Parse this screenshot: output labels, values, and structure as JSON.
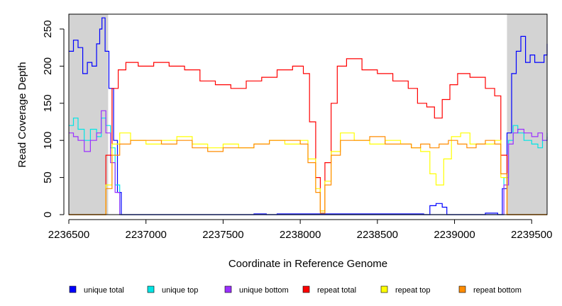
{
  "chart_data": {
    "type": "line",
    "title": "",
    "xlabel": "Coordinate in Reference Genome",
    "ylabel": "Read Coverage Depth",
    "xlim": [
      2236500,
      2239600
    ],
    "ylim": [
      0,
      270
    ],
    "x_ticks": [
      2236500,
      2237000,
      2237500,
      2238000,
      2238500,
      2239000,
      2239500
    ],
    "x_tick_labels": [
      "2236500",
      "2237000",
      "2237500",
      "2238000",
      "2238500",
      "2239000",
      "2239500"
    ],
    "y_ticks": [
      0,
      50,
      100,
      150,
      200,
      250
    ],
    "y_tick_labels": [
      "0",
      "50",
      "100",
      "150",
      "200",
      "250"
    ],
    "grid": false,
    "legend_position": "bottom",
    "shaded_regions": [
      {
        "x0": 2236500,
        "x1": 2236755,
        "color": "#d3d3d3"
      },
      {
        "x0": 2239340,
        "x1": 2239600,
        "color": "#d3d3d3"
      }
    ],
    "series": [
      {
        "name": "unique total",
        "color": "#0000ff",
        "x": [
          2236500,
          2236530,
          2236560,
          2236590,
          2236620,
          2236650,
          2236680,
          2236700,
          2236715,
          2236735,
          2236760,
          2236790,
          2236815,
          2236840,
          2237600,
          2237700,
          2237780,
          2237850,
          2238800,
          2238840,
          2238880,
          2238920,
          2238950,
          2239150,
          2239200,
          2239280,
          2239310,
          2239340,
          2239370,
          2239400,
          2239430,
          2239460,
          2239490,
          2239520,
          2239550,
          2239580,
          2239600
        ],
        "y": [
          220,
          235,
          225,
          190,
          205,
          200,
          230,
          250,
          265,
          220,
          170,
          100,
          30,
          0,
          0,
          1,
          0,
          1,
          0,
          12,
          15,
          10,
          0,
          0,
          2,
          0,
          35,
          110,
          190,
          220,
          240,
          205,
          215,
          205,
          205,
          215,
          230
        ]
      },
      {
        "name": "unique top",
        "color": "#00e5e5",
        "x": [
          2236500,
          2236530,
          2236560,
          2236600,
          2236640,
          2236680,
          2236710,
          2236740,
          2236770,
          2236800,
          2236830,
          2239290,
          2239320,
          2239350,
          2239380,
          2239410,
          2239450,
          2239500,
          2239540,
          2239570,
          2239600
        ],
        "y": [
          120,
          130,
          115,
          100,
          115,
          105,
          130,
          120,
          90,
          40,
          0,
          0,
          50,
          100,
          120,
          110,
          100,
          95,
          90,
          100,
          110
        ]
      },
      {
        "name": "unique bottom",
        "color": "#9b30ff",
        "x": [
          2236500,
          2236530,
          2236560,
          2236600,
          2236640,
          2236680,
          2236710,
          2236740,
          2236770,
          2236800,
          2236830,
          2239290,
          2239320,
          2239350,
          2239380,
          2239410,
          2239450,
          2239500,
          2239540,
          2239570,
          2239600
        ],
        "y": [
          110,
          105,
          100,
          85,
          100,
          110,
          140,
          110,
          70,
          30,
          0,
          0,
          40,
          95,
          110,
          115,
          110,
          105,
          110,
          100,
          105
        ]
      },
      {
        "name": "repeat total",
        "color": "#ff0000",
        "x": [
          2236500,
          2236700,
          2236740,
          2236780,
          2236820,
          2236870,
          2236950,
          2237050,
          2237150,
          2237250,
          2237350,
          2237450,
          2237550,
          2237650,
          2237750,
          2237850,
          2237950,
          2238020,
          2238060,
          2238100,
          2238130,
          2238160,
          2238200,
          2238240,
          2238300,
          2238400,
          2238500,
          2238600,
          2238700,
          2238760,
          2238820,
          2238870,
          2238920,
          2238970,
          2239020,
          2239100,
          2239200,
          2239260,
          2239300,
          2239340,
          2239600
        ],
        "y": [
          0,
          0,
          80,
          170,
          195,
          205,
          200,
          205,
          200,
          195,
          180,
          175,
          170,
          180,
          185,
          195,
          200,
          190,
          125,
          50,
          5,
          70,
          150,
          200,
          210,
          195,
          190,
          180,
          170,
          150,
          145,
          130,
          155,
          175,
          190,
          185,
          170,
          160,
          80,
          0,
          0
        ]
      },
      {
        "name": "repeat top",
        "color": "#ffff00",
        "x": [
          2236500,
          2236700,
          2236740,
          2236780,
          2236830,
          2236900,
          2237000,
          2237100,
          2237200,
          2237300,
          2237400,
          2237500,
          2237600,
          2237700,
          2237800,
          2237900,
          2238000,
          2238050,
          2238100,
          2238130,
          2238160,
          2238200,
          2238260,
          2238350,
          2238450,
          2238550,
          2238650,
          2238720,
          2238780,
          2238840,
          2238880,
          2238930,
          2238980,
          2239040,
          2239100,
          2239180,
          2239260,
          2239300,
          2239340,
          2239600
        ],
        "y": [
          0,
          0,
          40,
          95,
          110,
          100,
          95,
          100,
          105,
          95,
          90,
          95,
          90,
          95,
          100,
          95,
          100,
          75,
          35,
          5,
          45,
          85,
          110,
          100,
          95,
          100,
          95,
          90,
          85,
          55,
          40,
          75,
          105,
          110,
          95,
          95,
          100,
          50,
          0,
          0
        ]
      },
      {
        "name": "repeat bottom",
        "color": "#ff8c00",
        "x": [
          2236500,
          2236700,
          2236740,
          2236780,
          2236830,
          2236900,
          2237000,
          2237100,
          2237200,
          2237300,
          2237400,
          2237500,
          2237600,
          2237700,
          2237800,
          2237900,
          2238000,
          2238050,
          2238100,
          2238130,
          2238160,
          2238200,
          2238260,
          2238350,
          2238450,
          2238550,
          2238650,
          2238720,
          2238780,
          2238840,
          2238900,
          2238960,
          2239020,
          2239080,
          2239140,
          2239200,
          2239260,
          2239300,
          2239340,
          2239600
        ],
        "y": [
          0,
          0,
          35,
          80,
          95,
          100,
          100,
          95,
          100,
          90,
          85,
          90,
          90,
          95,
          100,
          100,
          95,
          70,
          30,
          2,
          40,
          80,
          100,
          100,
          105,
          95,
          95,
          90,
          95,
          90,
          95,
          100,
          95,
          90,
          95,
          100,
          95,
          55,
          0,
          0
        ]
      }
    ]
  }
}
